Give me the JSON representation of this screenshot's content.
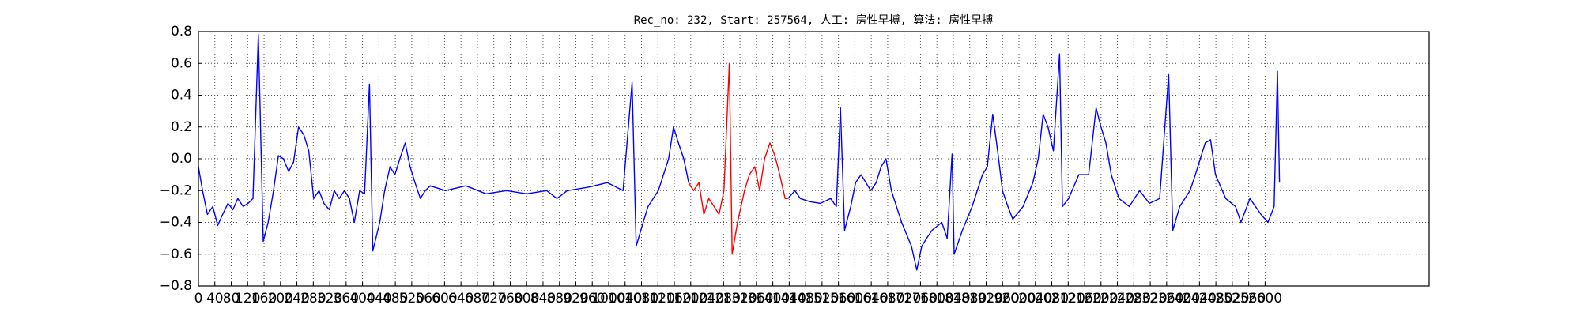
{
  "chart_data": {
    "type": "line",
    "title": "Rec_no: 232, Start: 257564, 人工: 房性早搏, 算法: 房性早搏",
    "xlim": [
      0,
      3000
    ],
    "ylim": [
      -0.8,
      0.8
    ],
    "xticks": [
      0,
      40,
      80,
      120,
      160,
      200,
      240,
      280,
      320,
      360,
      400,
      440,
      480,
      520,
      560,
      600,
      640,
      680,
      720,
      760,
      800,
      840,
      880,
      920,
      960,
      1000,
      1040,
      1080,
      1120,
      1160,
      1200,
      1240,
      1280,
      1320,
      1360,
      1400,
      1440,
      1480,
      1520,
      1560,
      1600,
      1640,
      1680,
      1720,
      1760,
      1800,
      1840,
      1880,
      1920,
      1960,
      2000,
      2040,
      2080,
      2120,
      2160,
      2200,
      2240,
      2280,
      2320,
      2360,
      2400,
      2440,
      2480,
      2520,
      2560,
      2600
    ],
    "yticks": [
      {
        "value": -0.8,
        "label": "−0.8"
      },
      {
        "value": -0.6,
        "label": "−0.6"
      },
      {
        "value": -0.4,
        "label": "−0.4"
      },
      {
        "value": -0.2,
        "label": "−0.2"
      },
      {
        "value": 0,
        "label": "0.0"
      },
      0.2,
      0.4,
      0.6,
      0.8
    ],
    "grid": true,
    "series": [
      {
        "color": "#0000ff",
        "x": [
          0,
          10,
          22,
          35,
          47,
          59,
          72,
          84,
          96,
          109,
          121,
          133,
          146,
          158,
          170,
          183,
          195,
          207,
          220,
          232,
          244,
          257,
          269,
          281,
          294,
          306,
          319,
          331,
          343,
          356,
          368,
          380,
          393,
          405,
          417,
          425,
          442,
          454,
          467,
          479,
          491,
          504,
          516,
          528,
          541,
          553,
          565,
          602,
          652,
          701,
          751,
          800,
          849,
          874,
          899,
          948,
          997,
          1035,
          1057,
          1067,
          1084,
          1096,
          1121,
          1146,
          1158,
          1170,
          1183,
          1195,
          1300,
          1437,
          1454,
          1467,
          1491,
          1516,
          1541,
          1555,
          1565,
          1575,
          1590,
          1602,
          1615,
          1639,
          1652,
          1664,
          1676,
          1689,
          1714,
          1738,
          1751,
          1763,
          1775,
          1788,
          1812,
          1825,
          1837,
          1842,
          1862,
          1886,
          1911,
          1923,
          1936,
          1948,
          1960,
          1973,
          1985,
          2010,
          2034,
          2047,
          2059,
          2071,
          2084,
          2099,
          2106,
          2121,
          2146,
          2170,
          2188,
          2200,
          2212,
          2225,
          2244,
          2269,
          2294,
          2318,
          2343,
          2365,
          2375,
          2392,
          2417,
          2430,
          2442,
          2454,
          2467,
          2479,
          2504,
          2528,
          2541,
          2563,
          2590,
          2607,
          2622,
          2630,
          2635
        ],
        "values": [
          -0.05,
          -0.2,
          -0.35,
          -0.3,
          -0.42,
          -0.35,
          -0.28,
          -0.32,
          -0.25,
          -0.3,
          -0.28,
          -0.25,
          0.78,
          -0.52,
          -0.4,
          -0.2,
          0.02,
          0.0,
          -0.08,
          -0.02,
          0.2,
          0.15,
          0.05,
          -0.25,
          -0.2,
          -0.28,
          -0.32,
          -0.2,
          -0.25,
          -0.2,
          -0.25,
          -0.4,
          -0.2,
          -0.22,
          0.47,
          -0.58,
          -0.4,
          -0.2,
          -0.05,
          -0.1,
          0.0,
          0.1,
          -0.05,
          -0.15,
          -0.25,
          -0.2,
          -0.17,
          -0.2,
          -0.17,
          -0.22,
          -0.2,
          -0.22,
          -0.2,
          -0.25,
          -0.2,
          -0.18,
          -0.15,
          -0.2,
          0.48,
          -0.55,
          -0.4,
          -0.3,
          -0.2,
          0.0,
          0.2,
          0.1,
          0.0,
          -0.15,
          null,
          -0.25,
          -0.2,
          -0.25,
          -0.27,
          -0.28,
          -0.25,
          -0.3,
          0.32,
          -0.45,
          -0.3,
          -0.15,
          -0.1,
          -0.2,
          -0.15,
          -0.05,
          0.0,
          -0.2,
          -0.4,
          -0.55,
          -0.7,
          -0.55,
          -0.5,
          -0.45,
          -0.4,
          -0.5,
          0.03,
          -0.6,
          -0.45,
          -0.3,
          -0.1,
          -0.05,
          0.28,
          0.05,
          -0.2,
          -0.3,
          -0.38,
          -0.3,
          -0.15,
          0.0,
          0.28,
          0.2,
          0.05,
          0.66,
          -0.3,
          -0.25,
          -0.1,
          -0.1,
          0.32,
          0.2,
          0.1,
          -0.1,
          -0.25,
          -0.3,
          -0.2,
          -0.28,
          -0.25,
          0.53,
          -0.45,
          -0.3,
          -0.2,
          -0.1,
          0.0,
          0.1,
          0.12,
          -0.1,
          -0.25,
          -0.3,
          -0.4,
          -0.25,
          -0.35,
          -0.4,
          -0.3,
          0.55,
          -0.15
        ]
      },
      {
        "color": "#ff0000",
        "x": [
          1195,
          1207,
          1220,
          1232,
          1244,
          1257,
          1269,
          1281,
          1294,
          1301,
          1314,
          1331,
          1343,
          1356,
          1368,
          1380,
          1393,
          1405,
          1417,
          1430,
          1437
        ],
        "values": [
          -0.15,
          -0.2,
          -0.15,
          -0.35,
          -0.25,
          -0.3,
          -0.35,
          -0.2,
          0.6,
          -0.6,
          -0.4,
          -0.2,
          -0.1,
          -0.05,
          -0.2,
          0.0,
          0.1,
          0.02,
          -0.1,
          -0.25,
          -0.25
        ]
      }
    ]
  }
}
